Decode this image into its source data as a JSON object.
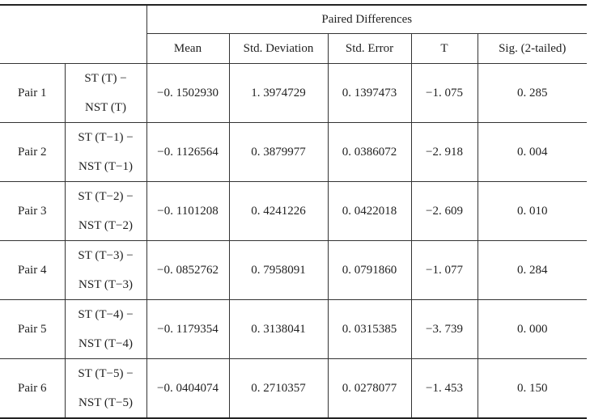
{
  "header": {
    "group": "Paired Differences",
    "columns": [
      "Mean",
      "Std.  Deviation",
      "Std.  Error",
      "T",
      "Sig. (2-tailed)"
    ]
  },
  "table": {
    "rows": [
      {
        "label": "Pair 1",
        "pair": [
          "ST (T) −",
          "NST (T)"
        ],
        "values": [
          "−0. 1502930",
          "1. 3974729",
          "0. 1397473",
          "−1. 075",
          "0. 285"
        ]
      },
      {
        "label": "Pair 2",
        "pair": [
          "ST (T−1) −",
          "NST (T−1)"
        ],
        "values": [
          "−0. 1126564",
          "0. 3879977",
          "0. 0386072",
          "−2. 918",
          "0. 004"
        ]
      },
      {
        "label": "Pair 3",
        "pair": [
          "ST (T−2) −",
          "NST (T−2)"
        ],
        "values": [
          "−0. 1101208",
          "0. 4241226",
          "0. 0422018",
          "−2. 609",
          "0. 010"
        ]
      },
      {
        "label": "Pair 4",
        "pair": [
          "ST (T−3) −",
          "NST (T−3)"
        ],
        "values": [
          "−0. 0852762",
          "0. 7958091",
          "0. 0791860",
          "−1. 077",
          "0. 284"
        ]
      },
      {
        "label": "Pair 5",
        "pair": [
          "ST (T−4) −",
          "NST (T−4)"
        ],
        "values": [
          "−0. 1179354",
          "0. 3138041",
          "0. 0315385",
          "−3. 739",
          "0. 000"
        ]
      },
      {
        "label": "Pair 6",
        "pair": [
          "ST (T−5) −",
          "NST (T−5)"
        ],
        "values": [
          "−0. 0404074",
          "0. 2710357",
          "0. 0278077",
          "−1. 453",
          "0. 150"
        ]
      }
    ]
  }
}
